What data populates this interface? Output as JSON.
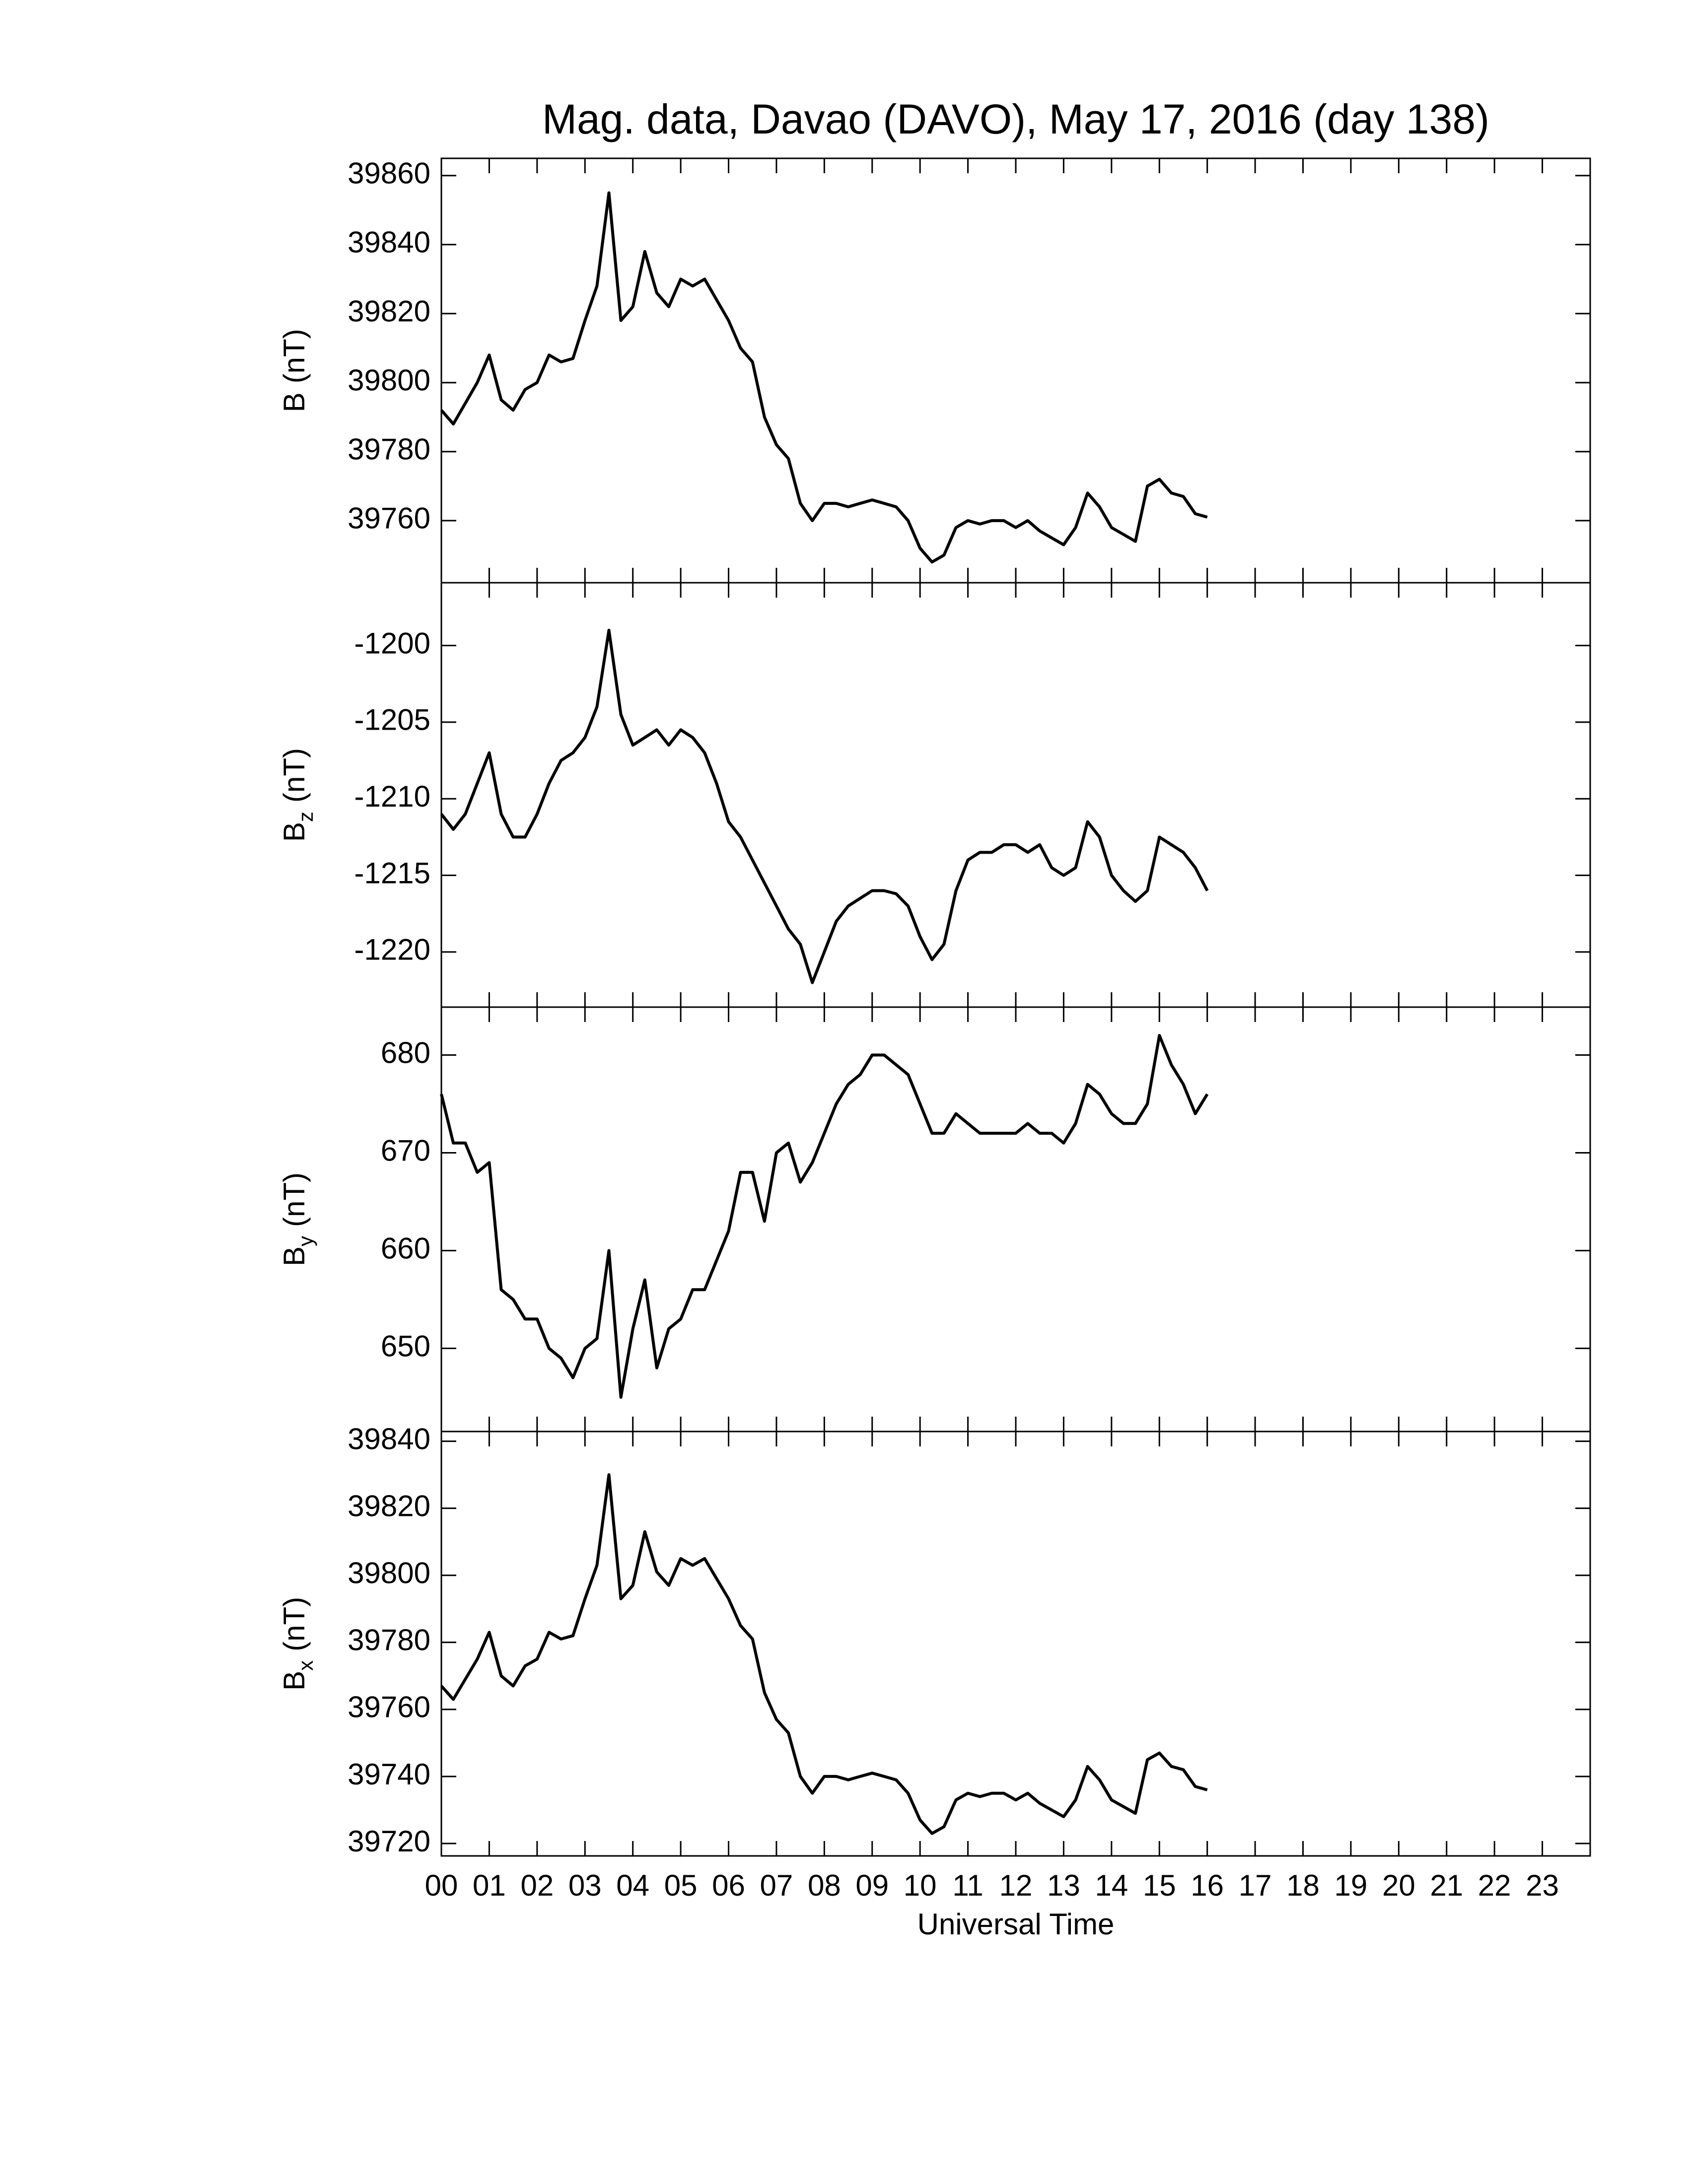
{
  "chart_data": [
    {
      "type": "line",
      "title": "Mag. data, Davao (DAVO), May 17, 2016 (day 138)",
      "ylabel_symbol": "B",
      "ylabel_unit": "(nT)",
      "color": "#000000",
      "xlim": [
        0,
        24
      ],
      "xticks": [
        0,
        1,
        2,
        3,
        4,
        5,
        6,
        7,
        8,
        9,
        10,
        11,
        12,
        13,
        14,
        15,
        16,
        17,
        18,
        19,
        20,
        21,
        22,
        23
      ],
      "ylim": [
        39742,
        39865
      ],
      "yticks": [
        39760,
        39780,
        39800,
        39820,
        39840,
        39860
      ],
      "x": [
        0,
        0.25,
        0.5,
        0.75,
        1,
        1.25,
        1.5,
        1.75,
        2,
        2.25,
        2.5,
        2.75,
        3,
        3.25,
        3.5,
        3.75,
        4,
        4.25,
        4.5,
        4.75,
        5,
        5.25,
        5.5,
        5.75,
        6,
        6.25,
        6.5,
        6.75,
        7,
        7.25,
        7.5,
        7.75,
        8,
        8.25,
        8.5,
        8.75,
        9,
        9.25,
        9.5,
        9.75,
        10,
        10.25,
        10.5,
        10.75,
        11,
        11.25,
        11.5,
        11.75,
        12,
        12.25,
        12.5,
        12.75,
        13,
        13.25,
        13.5,
        13.75,
        14,
        14.25,
        14.5,
        14.75,
        15,
        15.25,
        15.5,
        15.75,
        16
      ],
      "values": [
        39792,
        39788,
        39794,
        39800,
        39808,
        39795,
        39792,
        39798,
        39800,
        39808,
        39806,
        39807,
        39818,
        39828,
        39855,
        39818,
        39822,
        39838,
        39826,
        39822,
        39830,
        39828,
        39830,
        39824,
        39818,
        39810,
        39806,
        39790,
        39782,
        39778,
        39765,
        39760,
        39765,
        39765,
        39764,
        39765,
        39766,
        39765,
        39764,
        39760,
        39752,
        39748,
        39750,
        39758,
        39760,
        39759,
        39760,
        39760,
        39758,
        39760,
        39757,
        39755,
        39753,
        39758,
        39768,
        39764,
        39758,
        39756,
        39754,
        39770,
        39772,
        39768,
        39767,
        39762,
        39761
      ]
    },
    {
      "type": "line",
      "ylabel_symbol": "B",
      "ylabel_subscript": "z",
      "ylabel_unit": "(nT)",
      "color": "#000000",
      "xlim": [
        0,
        24
      ],
      "xticks": [
        0,
        1,
        2,
        3,
        4,
        5,
        6,
        7,
        8,
        9,
        10,
        11,
        12,
        13,
        14,
        15,
        16,
        17,
        18,
        19,
        20,
        21,
        22,
        23
      ],
      "ylim": [
        -1223.6,
        -1195.9
      ],
      "yticks": [
        -1220,
        -1215,
        -1210,
        -1205,
        -1200
      ],
      "x": [
        0,
        0.25,
        0.5,
        0.75,
        1,
        1.25,
        1.5,
        1.75,
        2,
        2.25,
        2.5,
        2.75,
        3,
        3.25,
        3.5,
        3.75,
        4,
        4.25,
        4.5,
        4.75,
        5,
        5.25,
        5.5,
        5.75,
        6,
        6.25,
        6.5,
        6.75,
        7,
        7.25,
        7.5,
        7.75,
        8,
        8.25,
        8.5,
        8.75,
        9,
        9.25,
        9.5,
        9.75,
        10,
        10.25,
        10.5,
        10.75,
        11,
        11.25,
        11.5,
        11.75,
        12,
        12.25,
        12.5,
        12.75,
        13,
        13.25,
        13.5,
        13.75,
        14,
        14.25,
        14.5,
        14.75,
        15,
        15.25,
        15.5,
        15.75,
        16
      ],
      "values": [
        -1211,
        -1212,
        -1211,
        -1209,
        -1207,
        -1211,
        -1212.5,
        -1212.5,
        -1211,
        -1209,
        -1207.5,
        -1207,
        -1206,
        -1204,
        -1199,
        -1204.5,
        -1206.5,
        -1206,
        -1205.5,
        -1206.5,
        -1205.5,
        -1206,
        -1207,
        -1209,
        -1211.5,
        -1212.5,
        -1214,
        -1215.5,
        -1217,
        -1218.5,
        -1219.5,
        -1222,
        -1220,
        -1218,
        -1217,
        -1216.5,
        -1216,
        -1216,
        -1216.2,
        -1217,
        -1219,
        -1220.5,
        -1219.5,
        -1216,
        -1214,
        -1213.5,
        -1213.5,
        -1213,
        -1213,
        -1213.5,
        -1213,
        -1214.5,
        -1215,
        -1214.5,
        -1211.5,
        -1212.5,
        -1215,
        -1216,
        -1216.7,
        -1216,
        -1212.5,
        -1213,
        -1213.5,
        -1214.5,
        -1216
      ]
    },
    {
      "type": "line",
      "ylabel_symbol": "B",
      "ylabel_subscript": "y",
      "ylabel_unit": "(nT)",
      "color": "#000000",
      "xlim": [
        0,
        24
      ],
      "xticks": [
        0,
        1,
        2,
        3,
        4,
        5,
        6,
        7,
        8,
        9,
        10,
        11,
        12,
        13,
        14,
        15,
        16,
        17,
        18,
        19,
        20,
        21,
        22,
        23
      ],
      "ylim": [
        641.5,
        684.9
      ],
      "yticks": [
        650,
        660,
        670,
        680
      ],
      "x": [
        0,
        0.25,
        0.5,
        0.75,
        1,
        1.25,
        1.5,
        1.75,
        2,
        2.25,
        2.5,
        2.75,
        3,
        3.25,
        3.5,
        3.75,
        4,
        4.25,
        4.5,
        4.75,
        5,
        5.25,
        5.5,
        5.75,
        6,
        6.25,
        6.5,
        6.75,
        7,
        7.25,
        7.5,
        7.75,
        8,
        8.25,
        8.5,
        8.75,
        9,
        9.25,
        9.5,
        9.75,
        10,
        10.25,
        10.5,
        10.75,
        11,
        11.25,
        11.5,
        11.75,
        12,
        12.25,
        12.5,
        12.75,
        13,
        13.25,
        13.5,
        13.75,
        14,
        14.25,
        14.5,
        14.75,
        15,
        15.25,
        15.5,
        15.75,
        16
      ],
      "values": [
        676,
        671,
        671,
        668,
        669,
        656,
        655,
        653,
        653,
        650,
        649,
        647,
        650,
        651,
        660,
        645,
        652,
        657,
        648,
        652,
        653,
        656,
        656,
        659,
        662,
        668,
        668,
        663,
        670,
        671,
        667,
        669,
        672,
        675,
        677,
        678,
        680,
        680,
        679,
        678,
        675,
        672,
        672,
        674,
        673,
        672,
        672,
        672,
        672,
        673,
        672,
        672,
        671,
        673,
        677,
        676,
        674,
        673,
        673,
        675,
        682,
        679,
        677,
        674,
        676
      ]
    },
    {
      "type": "line",
      "ylabel_symbol": "B",
      "ylabel_subscript": "x",
      "ylabel_unit": "(nT)",
      "color": "#000000",
      "xlabel": "Universal Time",
      "xlim": [
        0,
        24
      ],
      "xticks": [
        {
          "value": 0,
          "label": "00"
        },
        {
          "value": 1,
          "label": "01"
        },
        {
          "value": 2,
          "label": "02"
        },
        {
          "value": 3,
          "label": "03"
        },
        {
          "value": 4,
          "label": "04"
        },
        {
          "value": 5,
          "label": "05"
        },
        {
          "value": 6,
          "label": "06"
        },
        {
          "value": 7,
          "label": "07"
        },
        {
          "value": 8,
          "label": "08"
        },
        {
          "value": 9,
          "label": "09"
        },
        10,
        11,
        12,
        13,
        14,
        15,
        16,
        17,
        18,
        19,
        20,
        21,
        22,
        23
      ],
      "ylim": [
        39716.3,
        39842.9
      ],
      "yticks": [
        39720,
        39740,
        39760,
        39780,
        39800,
        39820,
        39840
      ],
      "x": [
        0,
        0.25,
        0.5,
        0.75,
        1,
        1.25,
        1.5,
        1.75,
        2,
        2.25,
        2.5,
        2.75,
        3,
        3.25,
        3.5,
        3.75,
        4,
        4.25,
        4.5,
        4.75,
        5,
        5.25,
        5.5,
        5.75,
        6,
        6.25,
        6.5,
        6.75,
        7,
        7.25,
        7.5,
        7.75,
        8,
        8.25,
        8.5,
        8.75,
        9,
        9.25,
        9.5,
        9.75,
        10,
        10.25,
        10.5,
        10.75,
        11,
        11.25,
        11.5,
        11.75,
        12,
        12.25,
        12.5,
        12.75,
        13,
        13.25,
        13.5,
        13.75,
        14,
        14.25,
        14.5,
        14.75,
        15,
        15.25,
        15.5,
        15.75,
        16
      ],
      "values": [
        39767,
        39763,
        39769,
        39775,
        39783,
        39770,
        39767,
        39773,
        39775,
        39783,
        39781,
        39782,
        39793,
        39803,
        39830,
        39793,
        39797,
        39813,
        39801,
        39797,
        39805,
        39803,
        39805,
        39799,
        39793,
        39785,
        39781,
        39765,
        39757,
        39753,
        39740,
        39735,
        39740,
        39740,
        39739,
        39740,
        39741,
        39740,
        39739,
        39735,
        39727,
        39723,
        39725,
        39733,
        39735,
        39734,
        39735,
        39735,
        39733,
        39735,
        39732,
        39730,
        39728,
        39733,
        39743,
        39739,
        39733,
        39731,
        39729,
        39745,
        39747,
        39743,
        39742,
        39737,
        39736
      ]
    }
  ]
}
